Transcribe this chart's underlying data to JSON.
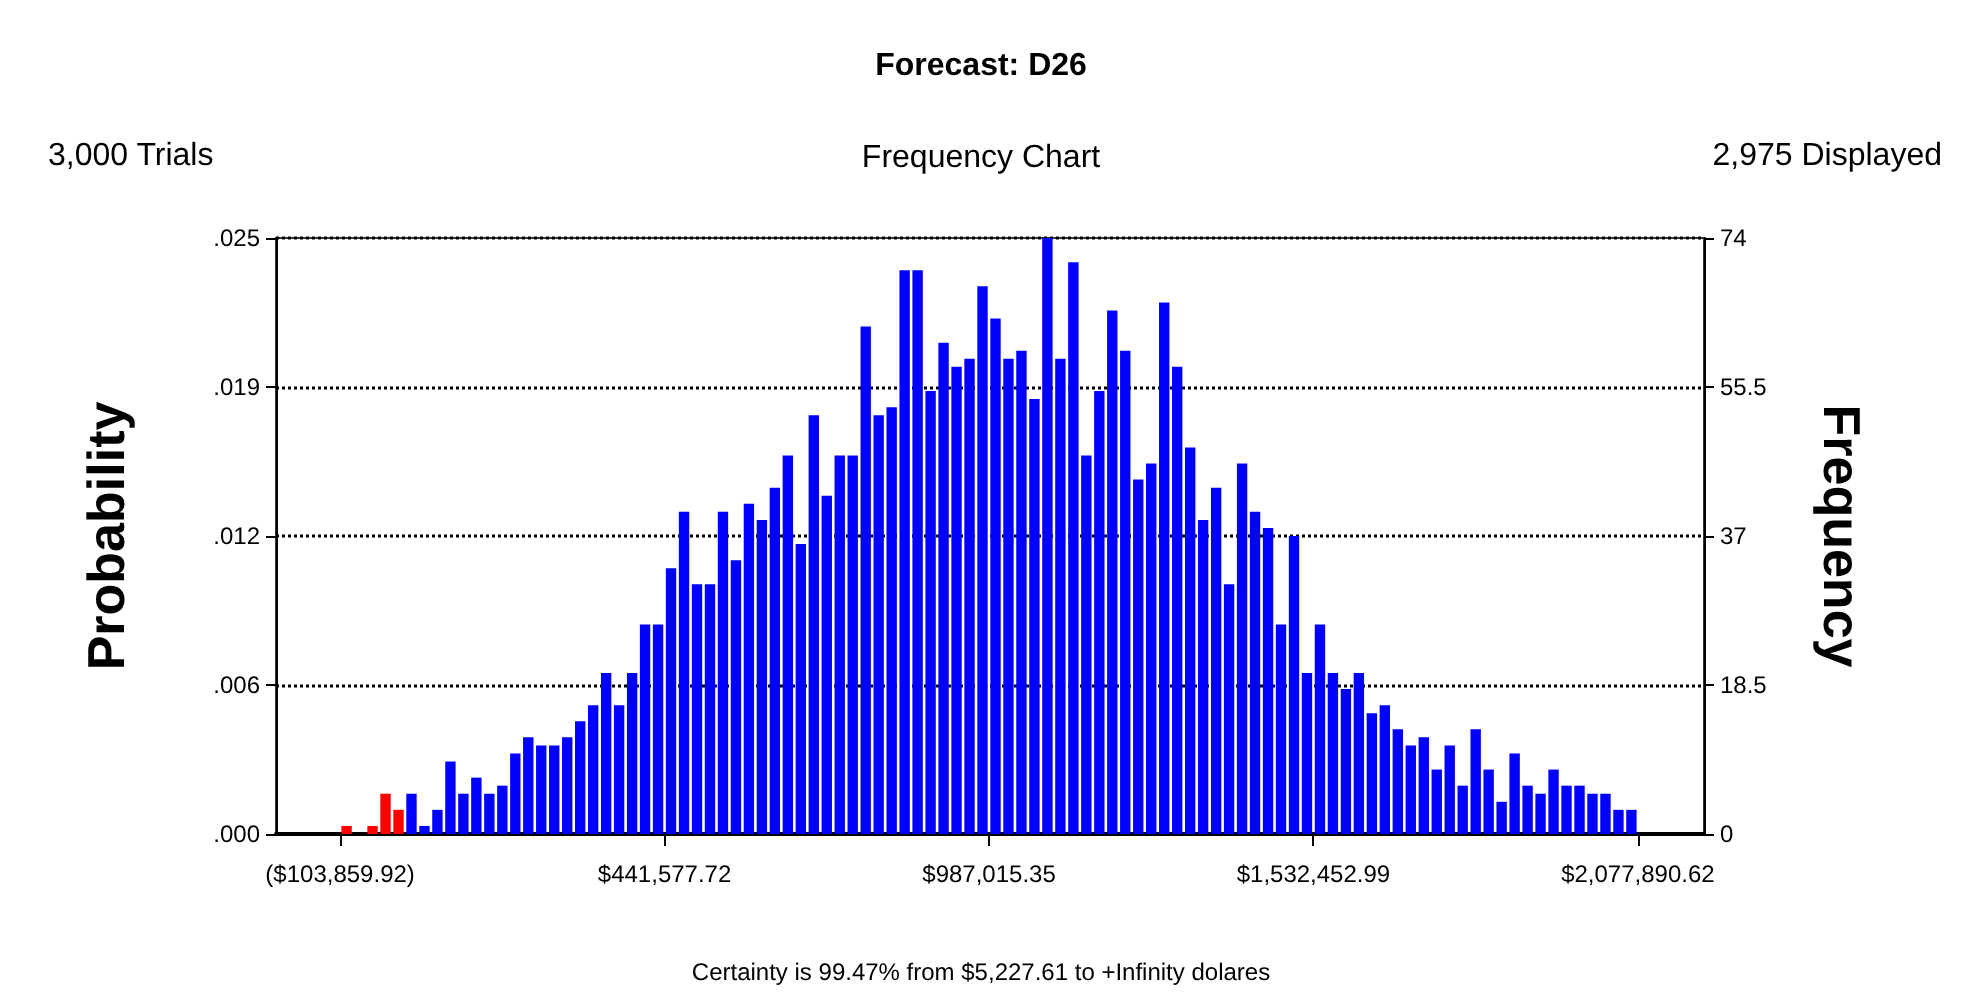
{
  "chart_data": {
    "type": "histogram",
    "title": "Forecast: D26",
    "subtitle": "Frequency Chart",
    "annotations": [
      "3,000 Trials",
      "2,975 Displayed",
      "Certainty is 99.47% from $5,227.61 to +Infinity dolares"
    ],
    "ylabel": "Probability",
    "y2label": "Frequency",
    "bins": [
      -103860,
      -82042,
      -60225,
      -38407,
      -16590,
      5228,
      27045,
      48863,
      70680,
      92498,
      114315,
      136133,
      157950,
      179768,
      201585,
      223403,
      245220,
      267038,
      288855,
      310673,
      332490,
      354308,
      376125,
      397943,
      419760,
      441578,
      463395,
      485213,
      507030,
      528848,
      550665,
      572483,
      594300,
      616118,
      637935,
      659753,
      681570,
      703388,
      725205,
      747023,
      768840,
      790658,
      812475,
      834293,
      856110,
      877928,
      899745,
      921563,
      943380,
      965198,
      987015,
      1008833,
      1030650,
      1052468,
      1074285,
      1096103,
      1117920,
      1139738,
      1161555,
      1183373,
      1205190,
      1227008,
      1248825,
      1270643,
      1292460,
      1314278,
      1336095,
      1357913,
      1379730,
      1401548,
      1423365,
      1445183,
      1467000,
      1488818,
      1510635,
      1532453,
      1554270,
      1576088,
      1597905,
      1619723,
      1641541,
      1663358,
      1685176,
      1706993,
      1728811,
      1750628,
      1772446,
      1794263,
      1816081,
      1837898,
      1859716,
      1881533,
      1903351,
      1925168,
      1946986,
      1968803,
      1990621,
      2012438,
      2034256,
      2056073,
      2077891
    ],
    "series": [
      {
        "axis": "y2",
        "values": [
          1,
          0,
          1,
          5,
          3,
          5,
          1,
          3,
          9,
          5,
          7,
          5,
          6,
          10,
          12,
          11,
          11,
          12,
          14,
          16,
          20,
          16,
          20,
          26,
          26,
          33,
          40,
          31,
          31,
          40,
          34,
          41,
          39,
          43,
          47,
          36,
          52,
          42,
          47,
          47,
          63,
          52,
          53,
          70,
          70,
          55,
          61,
          58,
          59,
          68,
          64,
          59,
          60,
          54,
          74,
          59,
          71,
          47,
          55,
          65,
          60,
          44,
          46,
          66,
          58,
          48,
          39,
          43,
          31,
          46,
          40,
          38,
          26,
          37,
          20,
          26,
          20,
          18,
          20,
          15,
          16,
          13,
          11,
          12,
          8,
          11,
          6,
          13,
          8,
          4,
          10,
          6,
          5,
          8,
          6,
          6,
          5,
          5,
          3,
          3
        ],
        "colors": [
          "#ff0000",
          "#ff0000",
          "#ff0000",
          "#ff0000",
          "#ff0000",
          "#0000ff",
          "#0000ff",
          "#0000ff",
          "#0000ff",
          "#0000ff",
          "#0000ff",
          "#0000ff",
          "#0000ff",
          "#0000ff",
          "#0000ff",
          "#0000ff",
          "#0000ff",
          "#0000ff",
          "#0000ff",
          "#0000ff",
          "#0000ff",
          "#0000ff",
          "#0000ff",
          "#0000ff",
          "#0000ff",
          "#0000ff",
          "#0000ff",
          "#0000ff",
          "#0000ff",
          "#0000ff",
          "#0000ff",
          "#0000ff",
          "#0000ff",
          "#0000ff",
          "#0000ff",
          "#0000ff",
          "#0000ff",
          "#0000ff",
          "#0000ff",
          "#0000ff",
          "#0000ff",
          "#0000ff",
          "#0000ff",
          "#0000ff",
          "#0000ff",
          "#0000ff",
          "#0000ff",
          "#0000ff",
          "#0000ff",
          "#0000ff",
          "#0000ff",
          "#0000ff",
          "#0000ff",
          "#0000ff",
          "#0000ff",
          "#0000ff",
          "#0000ff",
          "#0000ff",
          "#0000ff",
          "#0000ff",
          "#0000ff",
          "#0000ff",
          "#0000ff",
          "#0000ff",
          "#0000ff",
          "#0000ff",
          "#0000ff",
          "#0000ff",
          "#0000ff",
          "#0000ff",
          "#0000ff",
          "#0000ff",
          "#0000ff",
          "#0000ff",
          "#0000ff",
          "#0000ff",
          "#0000ff",
          "#0000ff",
          "#0000ff",
          "#0000ff",
          "#0000ff",
          "#0000ff",
          "#0000ff",
          "#0000ff",
          "#0000ff",
          "#0000ff",
          "#0000ff",
          "#0000ff",
          "#0000ff",
          "#0000ff",
          "#0000ff",
          "#0000ff",
          "#0000ff",
          "#0000ff",
          "#0000ff",
          "#0000ff",
          "#0000ff",
          "#0000ff",
          "#0000ff",
          "#0000ff"
        ]
      }
    ],
    "xlim": [
      -211600,
      2189000
    ],
    "xticks": [
      {
        "value": -103859.92,
        "label": "($103,859.92)"
      },
      {
        "value": 441577.72,
        "label": "$441,577.72"
      },
      {
        "value": 987015.35,
        "label": "$987,015.35"
      },
      {
        "value": 1532452.99,
        "label": "$1,532,452.99"
      },
      {
        "value": 2077890.62,
        "label": "$2,077,890.62"
      }
    ],
    "ylim": [
      0,
      0.024667
    ],
    "yticks": [
      {
        "value": 0,
        "label": ".000"
      },
      {
        "value": 0.006167,
        "label": ".006"
      },
      {
        "value": 0.012333,
        "label": ".012"
      },
      {
        "value": 0.0185,
        "label": ".019"
      },
      {
        "value": 0.024667,
        "label": ".025"
      }
    ],
    "y2lim": [
      0,
      74
    ],
    "y2ticks": [
      0,
      18.5,
      37,
      55.5,
      74
    ],
    "grid": "y"
  }
}
